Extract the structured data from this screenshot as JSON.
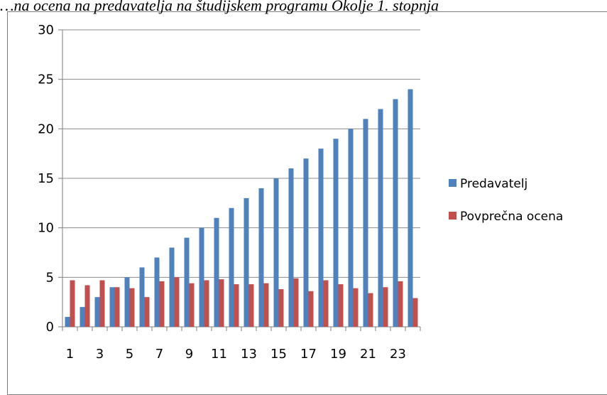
{
  "chart_data": {
    "type": "bar",
    "title": "…na ocena na predavatelja na študijskem programu Okolje 1. stopnja",
    "categories": [
      "1",
      "2",
      "3",
      "4",
      "5",
      "6",
      "7",
      "8",
      "9",
      "10",
      "11",
      "12",
      "13",
      "14",
      "15",
      "16",
      "17",
      "18",
      "19",
      "20",
      "21",
      "22",
      "23",
      "24"
    ],
    "x_tick_labels": [
      "1",
      "3",
      "5",
      "7",
      "9",
      "11",
      "13",
      "15",
      "17",
      "19",
      "21",
      "23"
    ],
    "y_ticks": [
      0,
      5,
      10,
      15,
      20,
      25,
      30
    ],
    "ylim": [
      0,
      30
    ],
    "grid": true,
    "legend_position": "right",
    "series": [
      {
        "name": "Predavatelj",
        "color": "#4f81bd",
        "values": [
          1,
          2,
          3,
          4,
          5,
          6,
          7,
          8,
          9,
          10,
          11,
          12,
          13,
          14,
          15,
          16,
          17,
          18,
          19,
          20,
          21,
          22,
          23,
          24
        ]
      },
      {
        "name": "Povprečna ocena",
        "color": "#c0504d",
        "values": [
          4.7,
          4.2,
          4.7,
          4.0,
          3.9,
          3.0,
          4.6,
          5.0,
          4.4,
          4.7,
          4.8,
          4.3,
          4.3,
          4.4,
          3.8,
          4.9,
          3.6,
          4.7,
          4.3,
          3.9,
          3.4,
          4.0,
          4.6,
          2.9
        ]
      }
    ]
  }
}
